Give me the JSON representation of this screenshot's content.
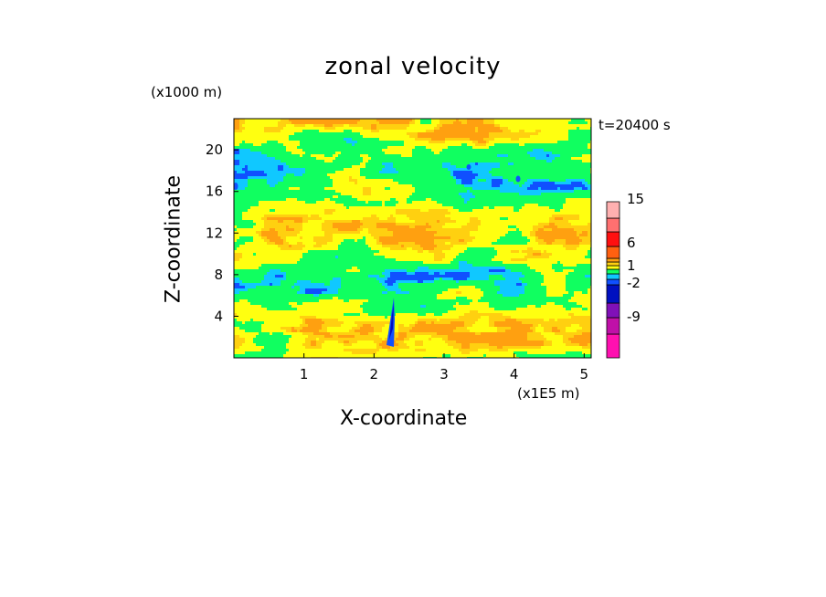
{
  "chart_data": {
    "type": "heatmap",
    "title": "zonal velocity",
    "xlabel": "X-coordinate",
    "ylabel": "Z-coordinate",
    "x_unit": "(x1E5 m)",
    "z_unit": "(x1000 m)",
    "time_label": "t=20400 s",
    "xlim": [
      0,
      5.1
    ],
    "ylim": [
      0,
      23
    ],
    "x_ticks": [
      1,
      2,
      3,
      4,
      5
    ],
    "y_ticks": [
      4,
      8,
      12,
      16,
      20
    ],
    "colorbar": {
      "colors": [
        "#ff10b0",
        "#c010a8",
        "#8010b8",
        "#0010c0",
        "#1050ff",
        "#10c8ff",
        "#10ff60",
        "#ffff10",
        "#ffd010",
        "#ffa010",
        "#ff6010",
        "#ff1010",
        "#ff7070",
        "#ffb0b0"
      ],
      "tick_labels": [
        "-9",
        "-2",
        "1",
        "6",
        "15"
      ],
      "tick_levels": [
        -9,
        -2,
        1,
        6,
        15
      ]
    }
  }
}
